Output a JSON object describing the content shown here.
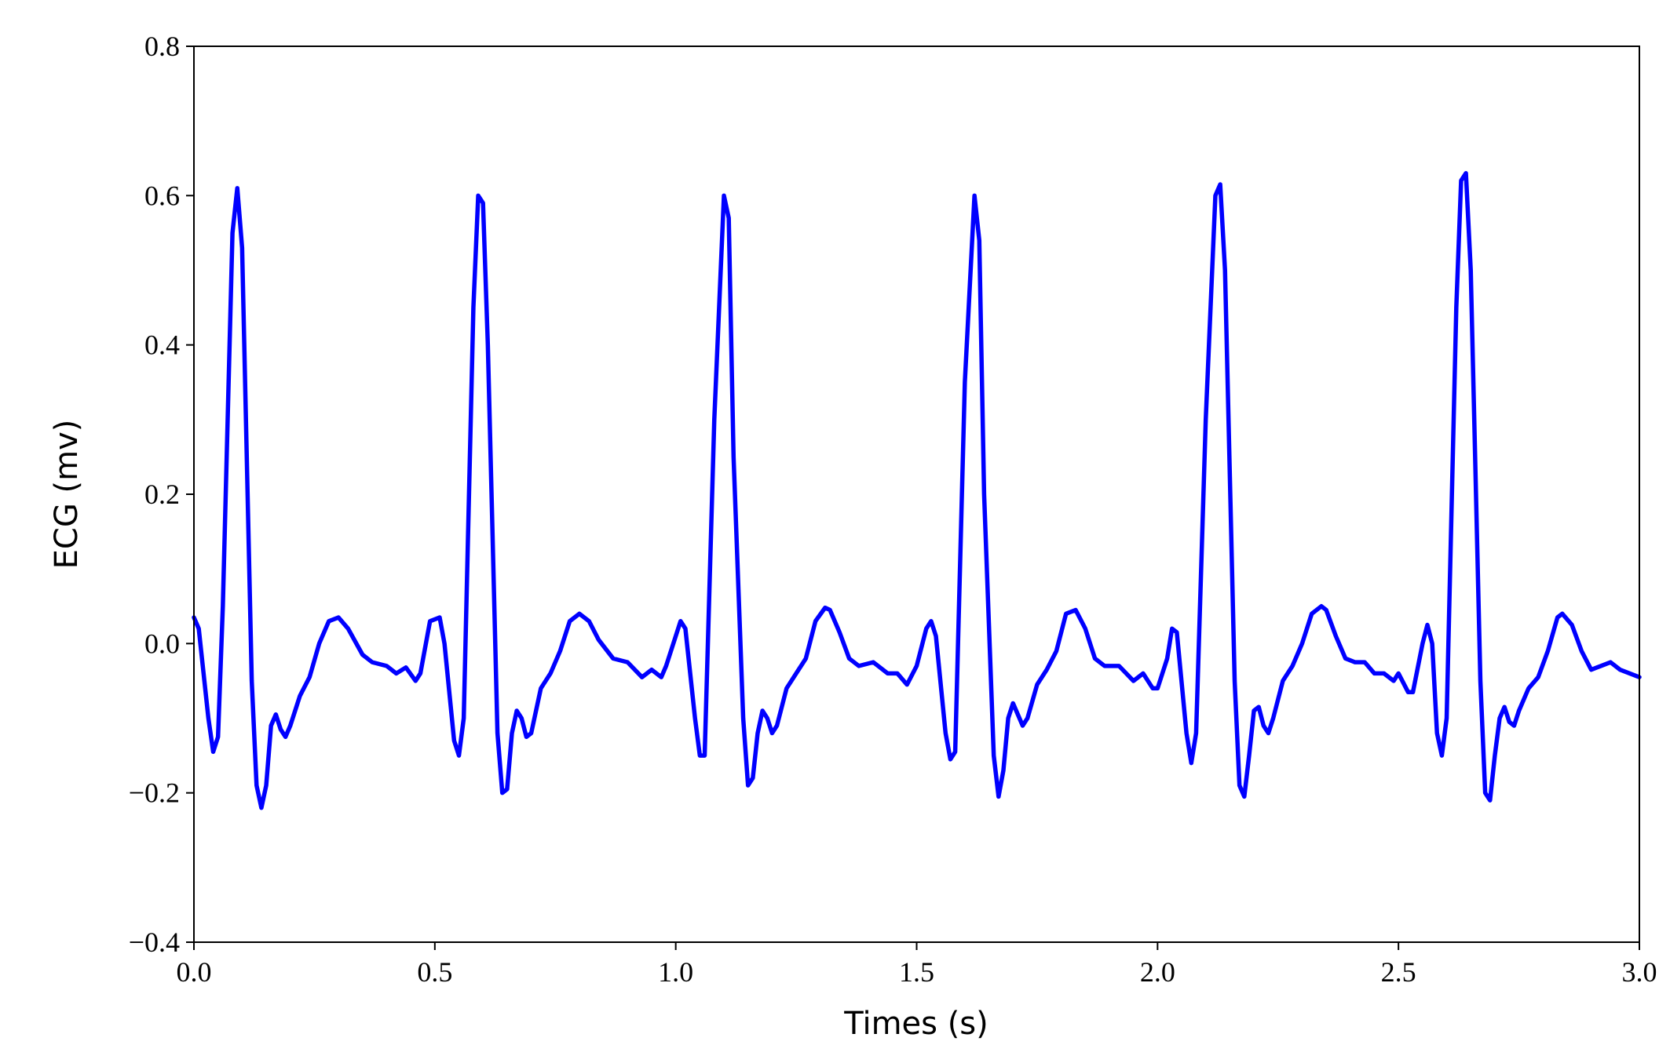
{
  "chart_data": {
    "type": "line",
    "xlabel": "Times (s)",
    "ylabel": "ECG (mv)",
    "color": "#0000ff",
    "grid": false,
    "xlim": [
      0,
      3
    ],
    "ylim": [
      -0.4,
      0.8
    ],
    "xticks": [
      {
        "value": 0,
        "label": "0.0"
      },
      0.5,
      {
        "value": 1,
        "label": "1.0"
      },
      1.5,
      {
        "value": 2,
        "label": "2.0"
      },
      2.5,
      {
        "value": 3,
        "label": "3.0"
      }
    ],
    "yticks": [
      {
        "value": -0.4,
        "label": "−0.4"
      },
      {
        "value": -0.2,
        "label": "−0.2"
      },
      {
        "value": 0,
        "label": "0.0"
      },
      0.2,
      0.4,
      0.6,
      0.8
    ],
    "x": [
      0.0,
      0.01,
      0.03,
      0.04,
      0.05,
      0.06,
      0.08,
      0.09,
      0.1,
      0.12,
      0.13,
      0.14,
      0.15,
      0.16,
      0.17,
      0.18,
      0.19,
      0.2,
      0.22,
      0.24,
      0.26,
      0.28,
      0.3,
      0.32,
      0.35,
      0.37,
      0.4,
      0.42,
      0.44,
      0.46,
      0.47,
      0.49,
      0.51,
      0.52,
      0.54,
      0.55,
      0.56,
      0.58,
      0.59,
      0.6,
      0.61,
      0.63,
      0.64,
      0.65,
      0.66,
      0.67,
      0.68,
      0.69,
      0.7,
      0.72,
      0.74,
      0.76,
      0.78,
      0.8,
      0.82,
      0.84,
      0.87,
      0.9,
      0.93,
      0.95,
      0.97,
      0.98,
      1.0,
      1.01,
      1.02,
      1.04,
      1.05,
      1.06,
      1.08,
      1.1,
      1.11,
      1.12,
      1.14,
      1.15,
      1.16,
      1.17,
      1.18,
      1.19,
      1.2,
      1.21,
      1.23,
      1.25,
      1.27,
      1.29,
      1.31,
      1.32,
      1.34,
      1.36,
      1.38,
      1.41,
      1.44,
      1.46,
      1.48,
      1.5,
      1.52,
      1.53,
      1.54,
      1.56,
      1.57,
      1.58,
      1.6,
      1.62,
      1.63,
      1.64,
      1.66,
      1.67,
      1.68,
      1.69,
      1.7,
      1.71,
      1.72,
      1.73,
      1.75,
      1.77,
      1.79,
      1.81,
      1.83,
      1.85,
      1.87,
      1.89,
      1.92,
      1.95,
      1.97,
      1.99,
      2.0,
      2.02,
      2.03,
      2.04,
      2.06,
      2.07,
      2.08,
      2.1,
      2.12,
      2.13,
      2.14,
      2.16,
      2.17,
      2.18,
      2.19,
      2.2,
      2.21,
      2.22,
      2.23,
      2.24,
      2.26,
      2.28,
      2.3,
      2.32,
      2.34,
      2.35,
      2.37,
      2.39,
      2.41,
      2.43,
      2.45,
      2.47,
      2.49,
      2.5,
      2.52,
      2.53,
      2.55,
      2.56,
      2.57,
      2.58,
      2.59,
      2.6,
      2.62,
      2.63,
      2.64,
      2.65,
      2.67,
      2.68,
      2.69,
      2.7,
      2.71,
      2.72,
      2.73,
      2.74,
      2.75,
      2.77,
      2.79,
      2.81,
      2.83,
      2.84,
      2.86,
      2.88,
      2.9,
      2.92,
      2.94,
      2.96,
      2.98,
      3.0
    ],
    "values": [
      0.035,
      0.02,
      -0.1,
      -0.145,
      -0.125,
      0.05,
      0.55,
      0.61,
      0.53,
      -0.05,
      -0.19,
      -0.22,
      -0.19,
      -0.11,
      -0.095,
      -0.115,
      -0.125,
      -0.11,
      -0.07,
      -0.045,
      0.0,
      0.03,
      0.035,
      0.02,
      -0.015,
      -0.025,
      -0.03,
      -0.04,
      -0.032,
      -0.05,
      -0.04,
      0.03,
      0.035,
      0.0,
      -0.13,
      -0.15,
      -0.1,
      0.45,
      0.6,
      0.59,
      0.4,
      -0.12,
      -0.2,
      -0.195,
      -0.12,
      -0.09,
      -0.1,
      -0.125,
      -0.12,
      -0.06,
      -0.04,
      -0.01,
      0.03,
      0.04,
      0.03,
      0.005,
      -0.02,
      -0.025,
      -0.045,
      -0.035,
      -0.045,
      -0.03,
      0.01,
      0.03,
      0.02,
      -0.1,
      -0.15,
      -0.15,
      0.3,
      0.6,
      0.57,
      0.25,
      -0.1,
      -0.19,
      -0.18,
      -0.12,
      -0.09,
      -0.1,
      -0.12,
      -0.11,
      -0.06,
      -0.04,
      -0.02,
      0.03,
      0.048,
      0.045,
      0.015,
      -0.02,
      -0.03,
      -0.025,
      -0.04,
      -0.04,
      -0.055,
      -0.03,
      0.02,
      0.03,
      0.01,
      -0.12,
      -0.155,
      -0.145,
      0.35,
      0.6,
      0.54,
      0.2,
      -0.15,
      -0.205,
      -0.17,
      -0.1,
      -0.08,
      -0.095,
      -0.11,
      -0.1,
      -0.055,
      -0.035,
      -0.01,
      0.04,
      0.045,
      0.02,
      -0.02,
      -0.03,
      -0.03,
      -0.05,
      -0.04,
      -0.06,
      -0.06,
      -0.02,
      0.02,
      0.015,
      -0.12,
      -0.16,
      -0.12,
      0.3,
      0.6,
      0.615,
      0.5,
      -0.05,
      -0.19,
      -0.205,
      -0.15,
      -0.09,
      -0.085,
      -0.11,
      -0.12,
      -0.1,
      -0.05,
      -0.03,
      0.0,
      0.04,
      0.05,
      0.045,
      0.01,
      -0.02,
      -0.025,
      -0.025,
      -0.04,
      -0.04,
      -0.05,
      -0.04,
      -0.065,
      -0.065,
      0.0,
      0.025,
      0.0,
      -0.12,
      -0.15,
      -0.1,
      0.45,
      0.62,
      0.63,
      0.5,
      -0.05,
      -0.2,
      -0.21,
      -0.15,
      -0.1,
      -0.085,
      -0.105,
      -0.11,
      -0.09,
      -0.06,
      -0.045,
      -0.01,
      0.035,
      0.04,
      0.025,
      -0.01,
      -0.035,
      -0.03,
      -0.025,
      -0.035,
      -0.04,
      -0.045
    ]
  }
}
